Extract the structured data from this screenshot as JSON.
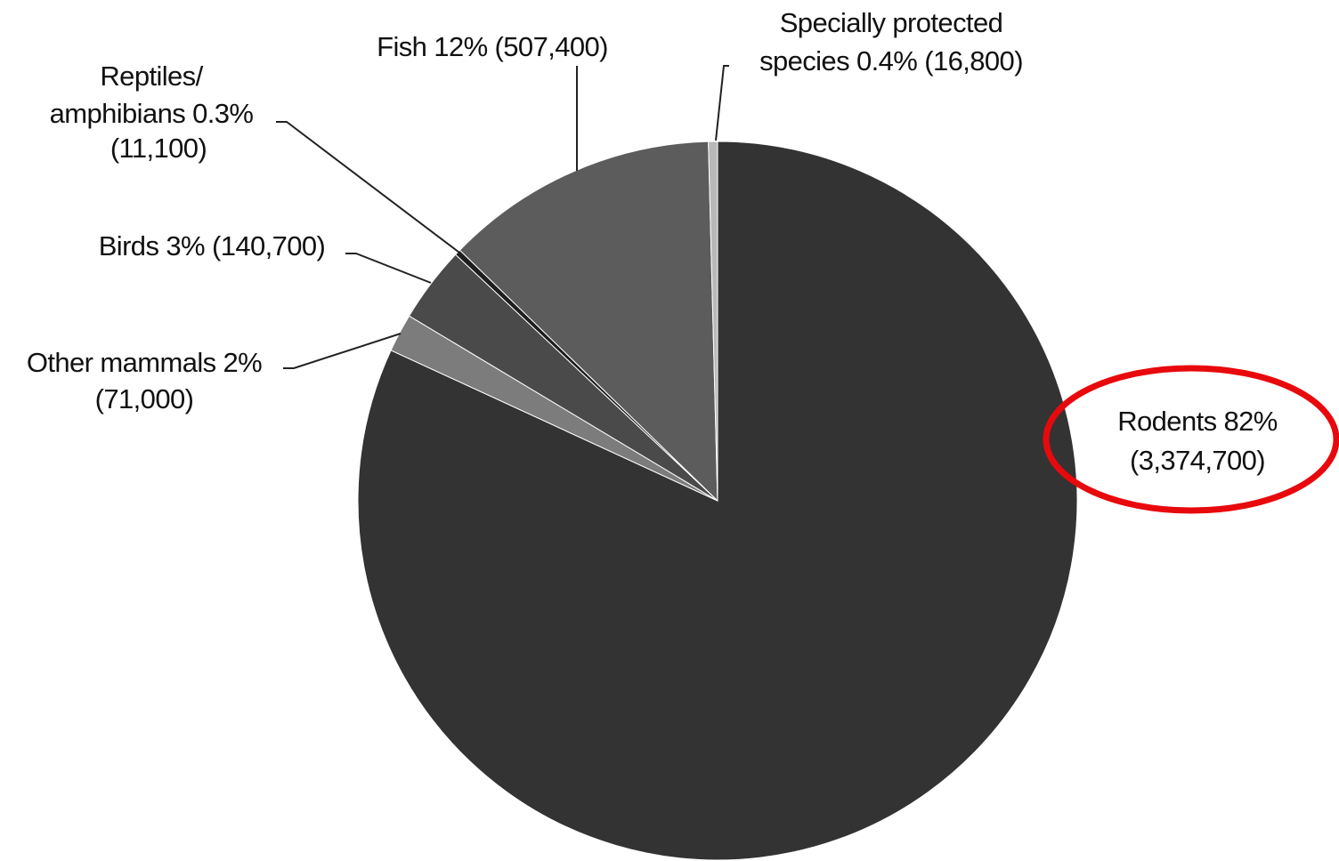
{
  "chart_data": {
    "type": "pie",
    "title": "",
    "slices": [
      {
        "label": "Rodents",
        "percent_text": "82%",
        "count_text": "(3,374,700)",
        "value": 3374700,
        "color": "#333333"
      },
      {
        "label": "Other mammals",
        "percent_text": "2%",
        "count_text": "(71,000)",
        "value": 71000,
        "color": "#7c7c7c"
      },
      {
        "label": "Birds",
        "percent_text": "3%",
        "count_text": "(140,700)",
        "value": 140700,
        "color": "#4a4a4a"
      },
      {
        "label": "Reptiles/ amphibians",
        "percent_text": "0.3%",
        "count_text": "(11,100)",
        "value": 11100,
        "color": "#1e1e1e"
      },
      {
        "label": "Fish",
        "percent_text": "12%",
        "count_text": "(507,400)",
        "value": 507400,
        "color": "#5c5c5c"
      },
      {
        "label": "Specially protected species",
        "percent_text": "0.4%",
        "count_text": "(16,800)",
        "value": 16800,
        "color": "#b8b8b8"
      }
    ],
    "legend": "none",
    "highlight": {
      "slice": "Rodents",
      "shape": "ellipse",
      "color": "#e8090c"
    }
  },
  "labels": {
    "rodents": {
      "line1": "Rodents 82%",
      "line2": "(3,374,700)"
    },
    "other_mammals": {
      "line1": "Other mammals 2%",
      "line2": "(71,000)"
    },
    "birds": {
      "line1": "Birds 3% (140,700)"
    },
    "reptiles": {
      "line1": "Reptiles/",
      "line2": "amphibians 0.3%",
      "line3": "(11,100)"
    },
    "fish": {
      "line1": "Fish 12% (507,400)"
    },
    "protected": {
      "line1": "Specially protected",
      "line2": "species 0.4% (16,800)"
    }
  }
}
